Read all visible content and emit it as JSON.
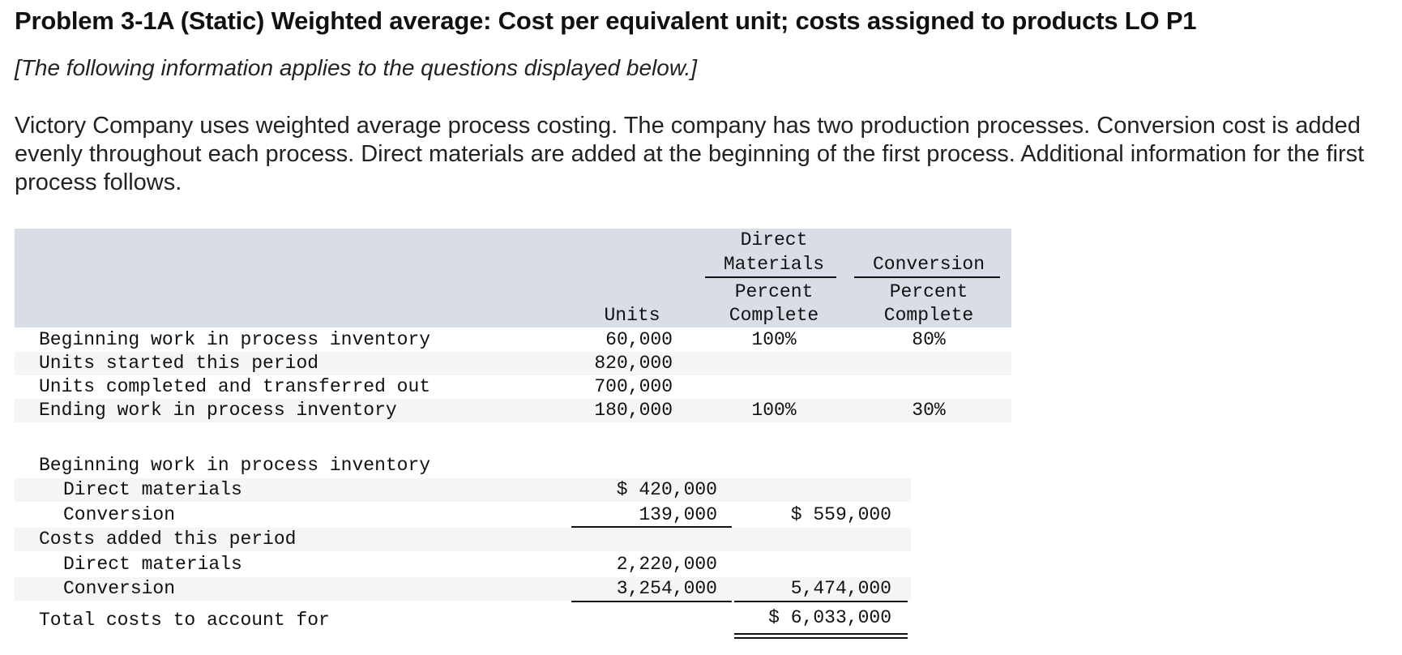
{
  "title": "Problem 3-1A (Static) Weighted average: Cost per equivalent unit; costs assigned to products LO P1",
  "subtitle": "[The following information applies to the questions displayed below.]",
  "intro": "Victory Company uses weighted average process costing. The company has two production processes. Conversion cost is added evenly throughout each process. Direct materials are added at the beginning of the first process. Additional information for the first process follows.",
  "units_table": {
    "headers": {
      "units": "Units",
      "dm_line1": "Direct",
      "dm_line2": "Materials",
      "dm_line3": "Percent",
      "dm_line4": "Complete",
      "conv_line2": "Conversion",
      "conv_line3": "Percent",
      "conv_line4": "Complete"
    },
    "rows": [
      {
        "label": "Beginning work in process inventory",
        "units": "60,000",
        "dm": "100%",
        "conv": "80%"
      },
      {
        "label": "Units started this period",
        "units": "820,000",
        "dm": "",
        "conv": ""
      },
      {
        "label": "Units completed and transferred out",
        "units": "700,000",
        "dm": "",
        "conv": ""
      },
      {
        "label": "Ending work in process inventory",
        "units": "180,000",
        "dm": "100%",
        "conv": "30%"
      }
    ]
  },
  "cost_table": {
    "rows": [
      {
        "label": "Beginning work in process inventory",
        "col1": "",
        "col2": ""
      },
      {
        "label": "Direct materials",
        "col1": "$ 420,000",
        "col2": ""
      },
      {
        "label": "Conversion",
        "col1": "139,000",
        "col2": "$ 559,000"
      },
      {
        "label": "Costs added this period",
        "col1": "",
        "col2": ""
      },
      {
        "label": "Direct materials",
        "col1": "2,220,000",
        "col2": ""
      },
      {
        "label": "Conversion",
        "col1": "3,254,000",
        "col2": "5,474,000"
      },
      {
        "label": "Total costs to account for",
        "col1": "",
        "col2": "$ 6,033,000"
      }
    ]
  }
}
